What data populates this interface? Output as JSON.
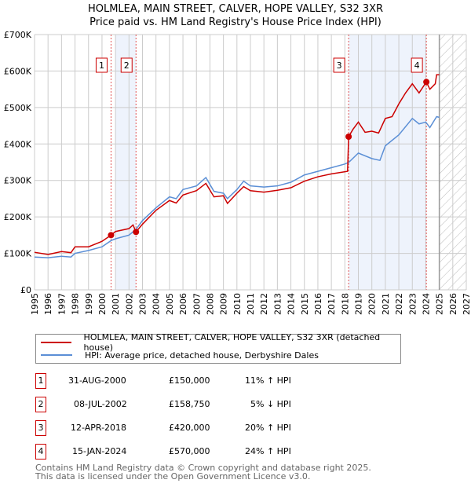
{
  "chart_data": {
    "type": "line",
    "title": "HOLMLEA, MAIN STREET, CALVER, HOPE VALLEY, S32 3XR",
    "subtitle": "Price paid vs. HM Land Registry's House Price Index (HPI)",
    "xlim": [
      1995,
      2027
    ],
    "ylim": [
      0,
      700000
    ],
    "x_ticks": [
      "1995",
      "1996",
      "1997",
      "1998",
      "1999",
      "2000",
      "2001",
      "2002",
      "2003",
      "2004",
      "2005",
      "2006",
      "2007",
      "2008",
      "2009",
      "2010",
      "2011",
      "2012",
      "2013",
      "2014",
      "2015",
      "2016",
      "2017",
      "2018",
      "2019",
      "2020",
      "2021",
      "2022",
      "2023",
      "2024",
      "2025",
      "2026",
      "2027"
    ],
    "y_ticks": [
      {
        "v": 0,
        "label": "£0"
      },
      {
        "v": 100000,
        "label": "£100K"
      },
      {
        "v": 200000,
        "label": "£200K"
      },
      {
        "v": 300000,
        "label": "£300K"
      },
      {
        "v": 400000,
        "label": "£400K"
      },
      {
        "v": 500000,
        "label": "£500K"
      },
      {
        "v": 600000,
        "label": "£600K"
      },
      {
        "v": 700000,
        "label": "£700K"
      }
    ],
    "series": [
      {
        "name": "HOLMLEA, MAIN STREET, CALVER, HOPE VALLEY, S32 3XR (detached house)",
        "color": "#cc0000",
        "x": [
          1995,
          1996,
          1997,
          1997.7,
          1998,
          1999,
          2000,
          2000.67,
          2001,
          2002,
          2002.3,
          2002.52,
          2003,
          2004,
          2005,
          2005.5,
          2006,
          2007,
          2007.7,
          2008.3,
          2009,
          2009.3,
          2010,
          2010.5,
          2011,
          2012,
          2013,
          2014,
          2015,
          2016,
          2017,
          2018.2,
          2018.28,
          2018.6,
          2019,
          2019.5,
          2020,
          2020.5,
          2021,
          2021.5,
          2022,
          2022.5,
          2023,
          2023.5,
          2024.04,
          2024.3,
          2024.7,
          2024.8,
          2025
        ],
        "y": [
          103000,
          97000,
          105000,
          102000,
          118000,
          118000,
          133000,
          150000,
          160000,
          168000,
          178000,
          158750,
          180000,
          218000,
          245000,
          238000,
          260000,
          272000,
          292000,
          255000,
          258000,
          237000,
          265000,
          283000,
          272000,
          268000,
          273000,
          280000,
          298000,
          310000,
          318000,
          325000,
          420000,
          440000,
          460000,
          432000,
          435000,
          430000,
          470000,
          475000,
          510000,
          540000,
          565000,
          540000,
          570000,
          550000,
          565000,
          590000,
          590000
        ]
      },
      {
        "name": "HPI: Average price, detached house, Derbyshire Dales",
        "color": "#5b8fd6",
        "x": [
          1995,
          1996,
          1997,
          1997.7,
          1998,
          1999,
          2000,
          2000.67,
          2001,
          2002,
          2002.5,
          2003,
          2004,
          2005,
          2005.5,
          2006,
          2007,
          2007.7,
          2008.3,
          2009,
          2009.3,
          2010,
          2010.5,
          2011,
          2012,
          2013,
          2014,
          2015,
          2016,
          2017,
          2018,
          2018.3,
          2019,
          2020,
          2020.6,
          2021,
          2022,
          2023,
          2023.5,
          2024,
          2024.3,
          2024.8,
          2025
        ],
        "y": [
          90000,
          88000,
          92000,
          90000,
          100000,
          108000,
          118000,
          135000,
          140000,
          150000,
          165000,
          190000,
          225000,
          255000,
          250000,
          275000,
          285000,
          308000,
          270000,
          265000,
          250000,
          275000,
          298000,
          285000,
          282000,
          285000,
          295000,
          315000,
          325000,
          335000,
          345000,
          350000,
          375000,
          360000,
          355000,
          395000,
          425000,
          470000,
          455000,
          460000,
          445000,
          475000,
          473000
        ]
      }
    ],
    "sales": [
      {
        "id": "1",
        "x": 2000.67,
        "y": 150000,
        "date": "31-AUG-2000",
        "price": "£150,000",
        "hpi": "11% ↑ HPI"
      },
      {
        "id": "2",
        "x": 2002.52,
        "y": 158750,
        "date": "08-JUL-2002",
        "price": "£158,750",
        "hpi": "5% ↓ HPI"
      },
      {
        "id": "3",
        "x": 2018.28,
        "y": 420000,
        "date": "12-APR-2018",
        "price": "£420,000",
        "hpi": "20% ↑ HPI"
      },
      {
        "id": "4",
        "x": 2024.04,
        "y": 570000,
        "date": "15-JAN-2024",
        "price": "£570,000",
        "hpi": "24% ↑ HPI"
      }
    ],
    "shaded_ranges": [
      [
        2001.0,
        2002.52
      ],
      [
        2018.28,
        2024.04
      ]
    ],
    "forecast_hatch_from": 2025,
    "grid": true
  },
  "footer": {
    "line1": "Contains HM Land Registry data © Crown copyright and database right 2025.",
    "line2": "This data is licensed under the Open Government Licence v3.0."
  }
}
